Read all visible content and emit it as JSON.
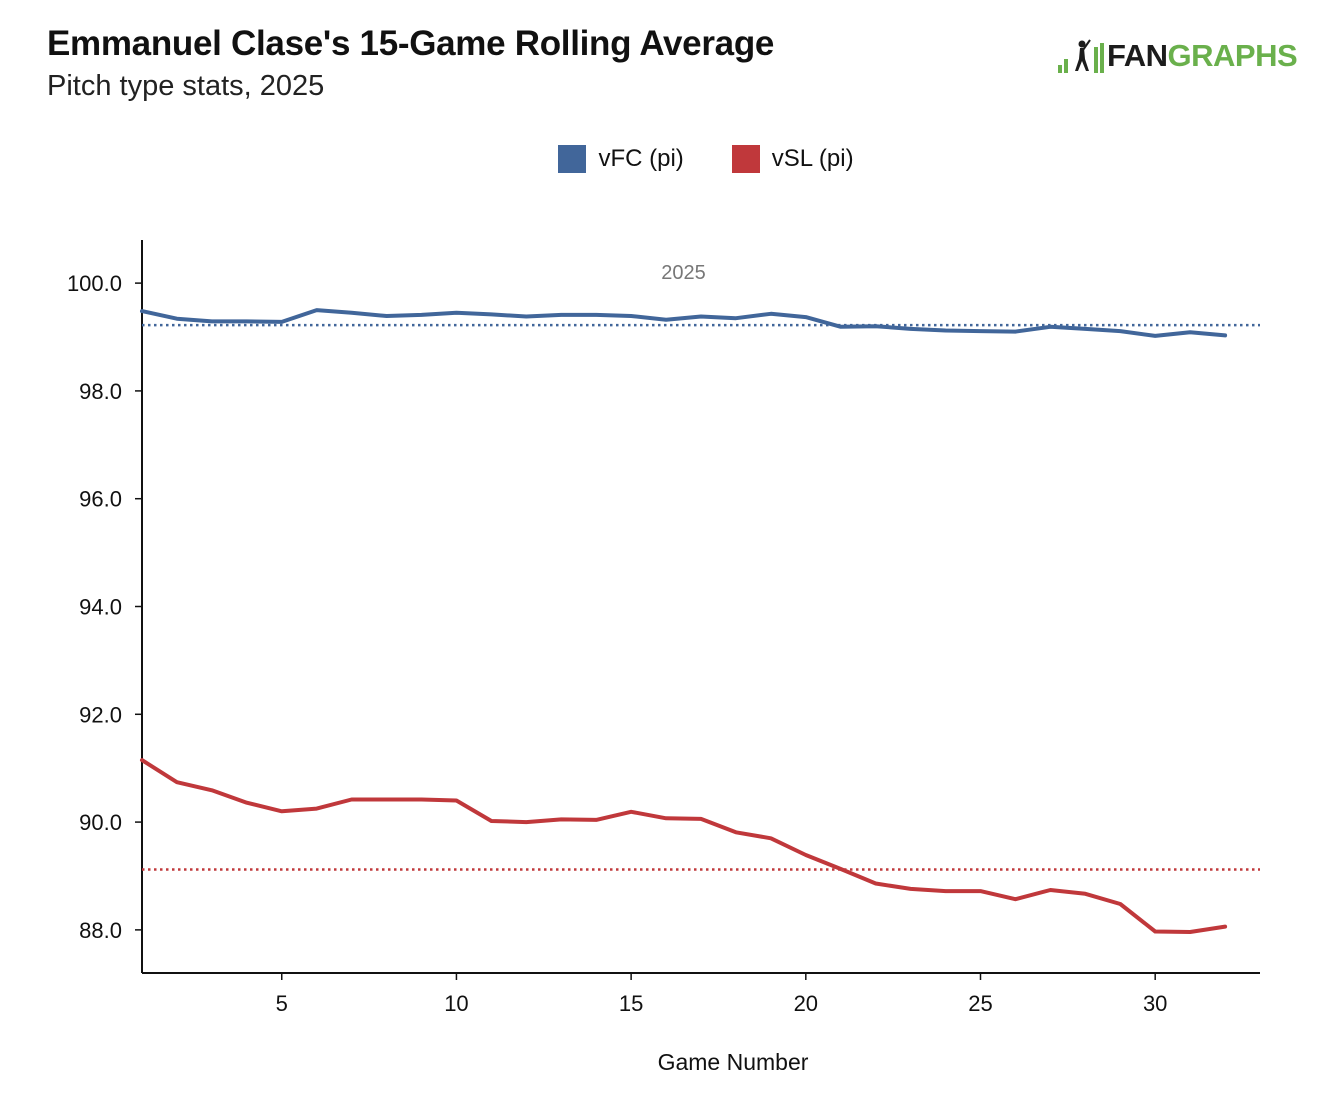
{
  "header": {
    "title": "Emmanuel Clase's 15-Game Rolling Average",
    "subtitle": "Pitch type stats, 2025"
  },
  "logo": {
    "fan": "FAN",
    "graphs": "GRAPHS"
  },
  "chart_data": {
    "type": "line",
    "title": "Emmanuel Clase's 15-Game Rolling Average",
    "subtitle": "Pitch type stats, 2025",
    "xlabel": "Game Number",
    "ylabel": "",
    "xlim": [
      1,
      33
    ],
    "ylim": [
      87.2,
      100.8
    ],
    "xticks": [
      5,
      10,
      15,
      20,
      25,
      30
    ],
    "yticks": [
      88.0,
      90.0,
      92.0,
      94.0,
      96.0,
      98.0,
      100.0
    ],
    "grid": false,
    "legend_position": "top-center",
    "annotation": "2025",
    "x": [
      1,
      2,
      3,
      4,
      5,
      6,
      7,
      8,
      9,
      10,
      11,
      12,
      13,
      14,
      15,
      16,
      17,
      18,
      19,
      20,
      21,
      22,
      23,
      24,
      25,
      26,
      27,
      28,
      29,
      30,
      31,
      32
    ],
    "series": [
      {
        "name": "vFC (pi)",
        "color": "#41669a",
        "average": 99.22,
        "values": [
          99.48,
          99.34,
          99.29,
          99.29,
          99.28,
          99.5,
          99.45,
          99.39,
          99.41,
          99.45,
          99.42,
          99.38,
          99.41,
          99.41,
          99.39,
          99.32,
          99.38,
          99.35,
          99.43,
          99.37,
          99.19,
          99.2,
          99.15,
          99.12,
          99.11,
          99.1,
          99.19,
          99.15,
          99.11,
          99.02,
          99.09,
          99.03
        ]
      },
      {
        "name": "vSL (pi)",
        "color": "#c0383b",
        "average": 89.12,
        "values": [
          91.15,
          90.74,
          90.59,
          90.36,
          90.2,
          90.25,
          90.42,
          90.42,
          90.42,
          90.4,
          90.02,
          90.0,
          90.05,
          90.04,
          90.19,
          90.07,
          90.06,
          89.81,
          89.7,
          89.39,
          89.13,
          88.86,
          88.76,
          88.72,
          88.72,
          88.57,
          88.74,
          88.67,
          88.48,
          87.97,
          87.96,
          88.06
        ]
      }
    ]
  }
}
